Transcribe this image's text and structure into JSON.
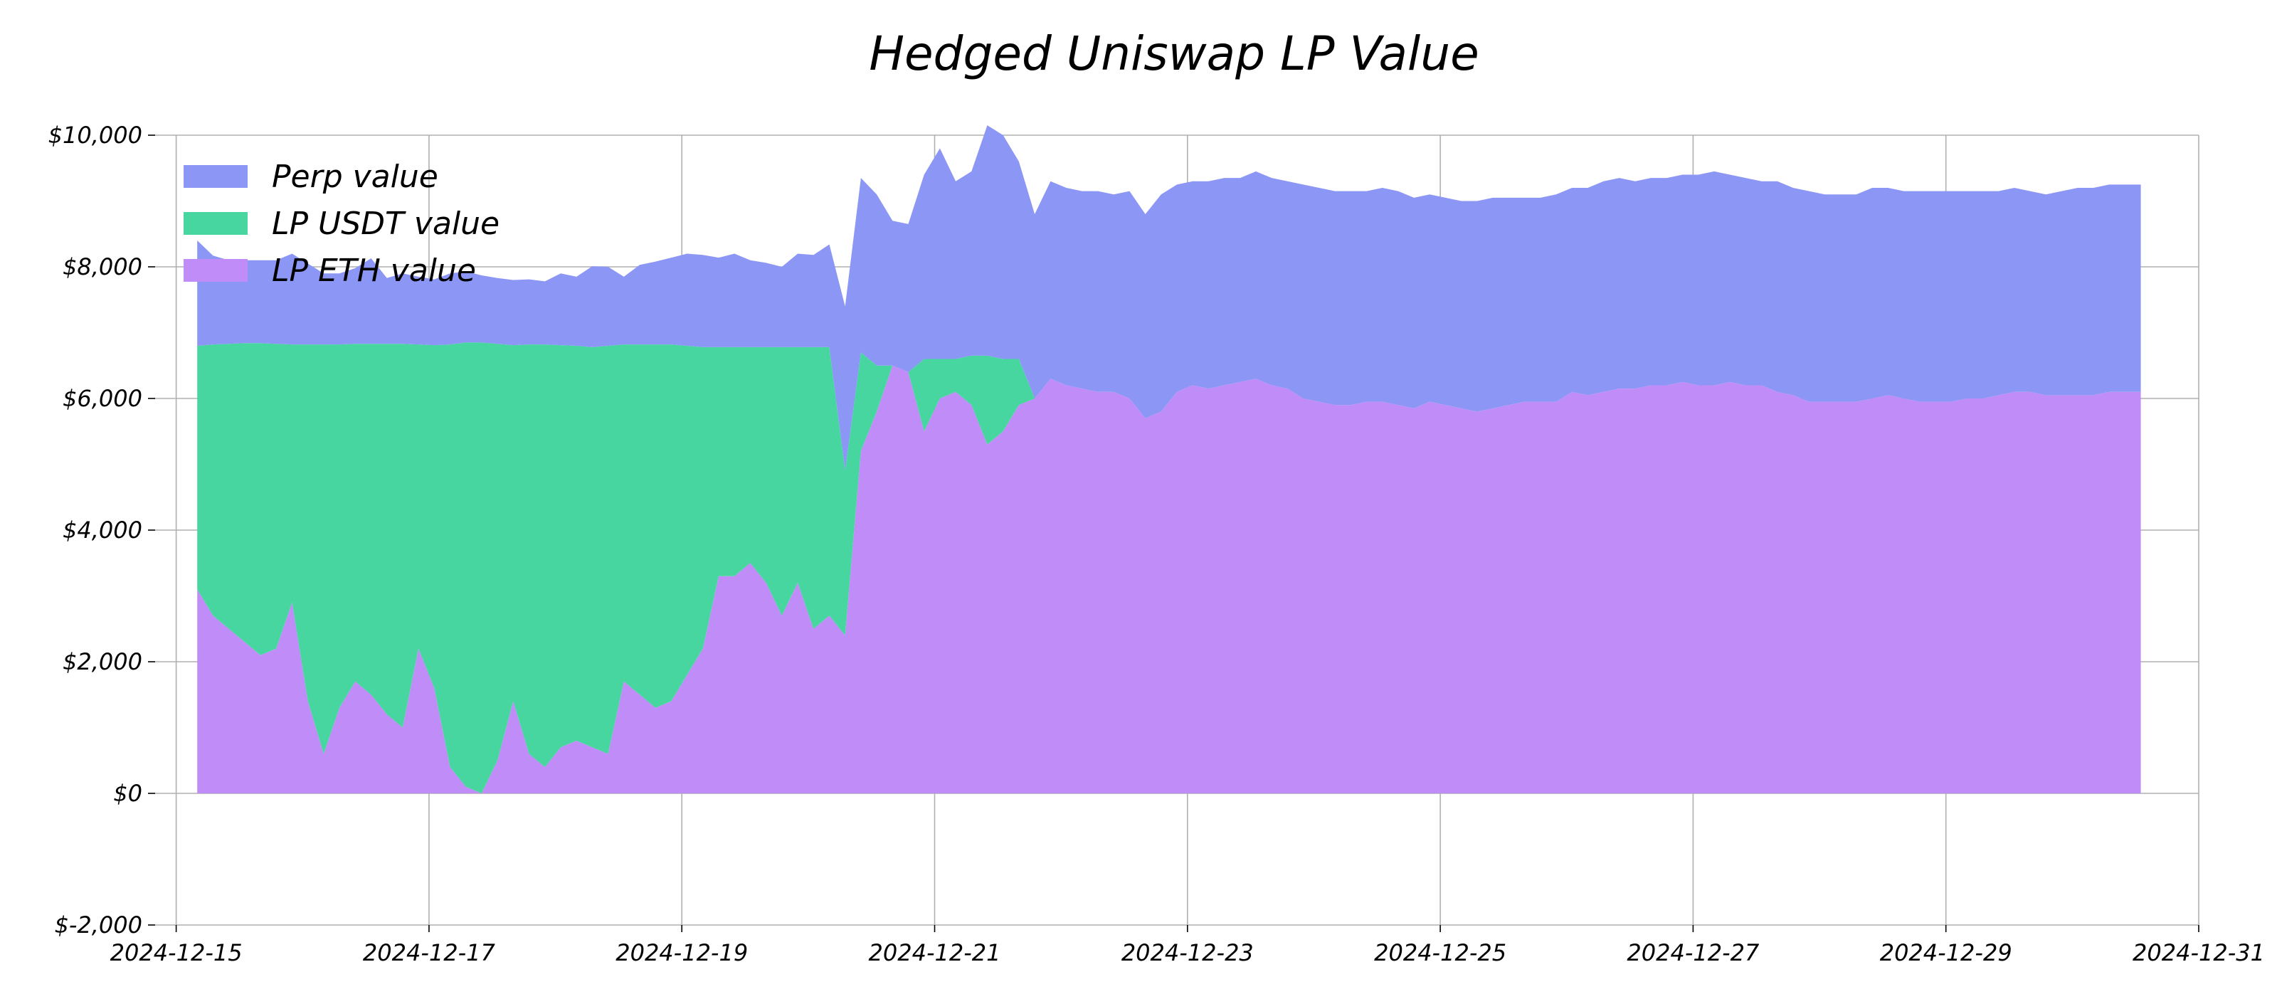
{
  "chart_data": {
    "type": "area",
    "stacked": true,
    "title": "Hedged Uniswap LP Value",
    "xlabel": "",
    "ylabel": "",
    "x_axis_type": "date",
    "xlim": [
      "2024-12-14T20:00",
      "2024-12-31T00:00"
    ],
    "ylim": [
      -2000,
      10000
    ],
    "x_ticks": [
      "2024-12-15",
      "2024-12-17",
      "2024-12-19",
      "2024-12-21",
      "2024-12-23",
      "2024-12-25",
      "2024-12-27",
      "2024-12-29",
      "2024-12-31"
    ],
    "y_ticks": [
      -2000,
      0,
      2000,
      4000,
      6000,
      8000,
      10000
    ],
    "y_tick_labels": [
      "$-2,000",
      "$0",
      "$2,000",
      "$4,000",
      "$6,000",
      "$8,000",
      "$10,000"
    ],
    "grid": true,
    "legend_position": "top-left",
    "series": [
      {
        "name": "LP ETH value",
        "color": "#c08cf8",
        "values": [
          3100,
          2700,
          2500,
          2300,
          2100,
          2200,
          2900,
          1400,
          600,
          1300,
          1700,
          1500,
          1200,
          1000,
          2200,
          1600,
          400,
          100,
          0,
          500,
          1400,
          600,
          400,
          700,
          800,
          700,
          600,
          1700,
          1500,
          1300,
          1400,
          1800,
          2200,
          3300,
          3300,
          3500,
          3200,
          2700,
          3200,
          2500,
          2700,
          2400,
          5200,
          5800,
          6500,
          6400,
          5500,
          6000,
          6100,
          5900,
          5300,
          5500,
          5900,
          6000,
          6300,
          6200,
          6150,
          6100,
          6100,
          6000,
          5700,
          5800,
          6100,
          6200,
          6150,
          6200,
          6250,
          6300,
          6200,
          6150,
          6000,
          5950,
          5900,
          5900,
          5950,
          5950,
          5900,
          5850,
          5950,
          5900,
          5850,
          5800,
          5850,
          5900,
          5950,
          5950,
          5950,
          6100,
          6050,
          6100,
          6150,
          6150,
          6200,
          6200,
          6250,
          6200,
          6200,
          6250,
          6200,
          6200,
          6100,
          6050,
          5950,
          5950,
          5950,
          5950,
          6000,
          6050,
          6000,
          5950,
          5950,
          5950,
          6000,
          6000,
          6050,
          6100,
          6100,
          6050,
          6050,
          6050,
          6050,
          6100,
          6100
        ]
      },
      {
        "name": "LP USDT value",
        "color": "#48d6a0",
        "values": [
          3700,
          4120,
          4330,
          4540,
          4740,
          4630,
          3920,
          5420,
          6220,
          5520,
          5130,
          5330,
          5630,
          5830,
          4620,
          5210,
          6420,
          6750,
          6850,
          6330,
          5410,
          6220,
          6420,
          6110,
          6000,
          6080,
          6200,
          5120,
          5320,
          5520,
          5420,
          5000,
          4580,
          3480,
          3480,
          3280,
          3580,
          4080,
          3580,
          4280,
          4080,
          2500,
          1500,
          700,
          0,
          0,
          1100,
          600,
          500,
          750,
          1350,
          1100,
          700,
          0,
          0,
          0,
          0,
          0,
          0,
          0,
          0,
          0,
          0,
          0,
          0,
          0,
          0,
          0,
          0,
          0,
          0,
          0,
          0,
          0,
          0,
          0,
          0,
          0,
          0,
          0,
          0,
          0,
          0,
          0,
          0,
          0,
          0,
          0,
          0,
          0,
          0,
          0,
          0,
          0,
          0,
          0,
          0,
          0,
          0,
          0,
          0,
          0,
          0,
          0,
          0,
          0,
          0,
          0,
          0,
          0,
          0,
          0,
          0,
          0,
          0,
          0,
          0,
          0,
          0,
          0,
          0,
          0,
          0
        ]
      },
      {
        "name": "Perp value",
        "color": "#8c96f5",
        "values": [
          1600,
          1350,
          1270,
          1260,
          1260,
          1270,
          1380,
          1230,
          1080,
          1080,
          1150,
          1300,
          1000,
          1070,
          1030,
          1000,
          1080,
          1080,
          1020,
          1000,
          990,
          990,
          960,
          1090,
          1050,
          1230,
          1200,
          1030,
          1210,
          1260,
          1320,
          1400,
          1400,
          1360,
          1420,
          1320,
          1280,
          1220,
          1420,
          1400,
          1560,
          2500,
          2650,
          2600,
          2200,
          2250,
          2800,
          3200,
          2700,
          2800,
          3500,
          3400,
          3000,
          2800,
          3000,
          3000,
          3000,
          3050,
          3000,
          3150,
          3100,
          3300,
          3150,
          3100,
          3150,
          3150,
          3100,
          3150,
          3150,
          3150,
          3250,
          3250,
          3250,
          3250,
          3200,
          3250,
          3250,
          3200,
          3150,
          3150,
          3150,
          3200,
          3200,
          3150,
          3100,
          3100,
          3150,
          3100,
          3150,
          3200,
          3200,
          3150,
          3150,
          3150,
          3150,
          3200,
          3250,
          3150,
          3150,
          3100,
          3200,
          3150,
          3200,
          3150,
          3150,
          3150,
          3200,
          3150,
          3150,
          3200,
          3200,
          3200,
          3150,
          3150,
          3100,
          3100,
          3050,
          3050,
          3100,
          3150,
          3150,
          3150,
          3150
        ]
      }
    ],
    "x_start": "2024-12-15T04:00",
    "x_end": "2024-12-30T13:00",
    "x_step_hours": 3
  }
}
